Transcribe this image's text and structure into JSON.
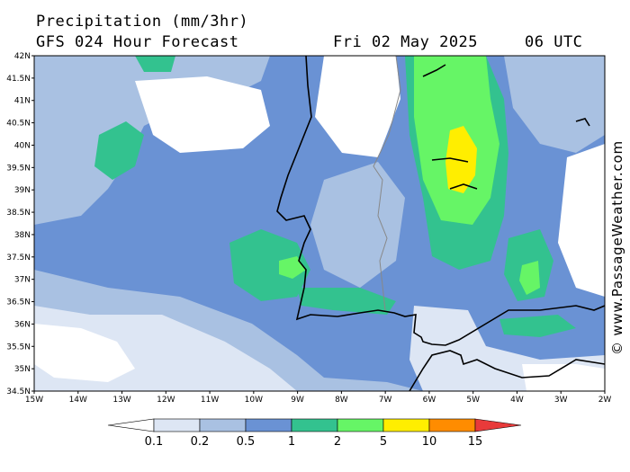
{
  "header": {
    "title": "Precipitation (mm/3hr)",
    "subtitle": "GFS 024 Hour Forecast",
    "date": "Fri 02 May 2025",
    "time": "06 UTC"
  },
  "credit": "© www.PassageWeather.com",
  "axes": {
    "lat_labels": [
      "42N",
      "41.5N",
      "41N",
      "40.5N",
      "40N",
      "39.5N",
      "39N",
      "38.5N",
      "38N",
      "37.5N",
      "37N",
      "36.5N",
      "36N",
      "35.5N",
      "35N",
      "34.5N"
    ],
    "lon_labels": [
      "15W",
      "14W",
      "13W",
      "12W",
      "11W",
      "10W",
      "9W",
      "8W",
      "7W",
      "6W",
      "5W",
      "4W",
      "3W",
      "2W"
    ]
  },
  "legend": {
    "labels": [
      "0.1",
      "0.2",
      "0.5",
      "1",
      "2",
      "5",
      "10",
      "15"
    ],
    "colors": [
      "#ffffff",
      "#dde6f4",
      "#a9c1e2",
      "#6a92d4",
      "#33c28f",
      "#66f566",
      "#ffee00",
      "#ff8c00",
      "#e83a3a"
    ]
  },
  "palette": {
    "c01": "#dde6f4",
    "c02": "#a9c1e2",
    "c05": "#6a92d4",
    "c1": "#33c28f",
    "c2": "#66f566",
    "c5": "#ffee00"
  }
}
